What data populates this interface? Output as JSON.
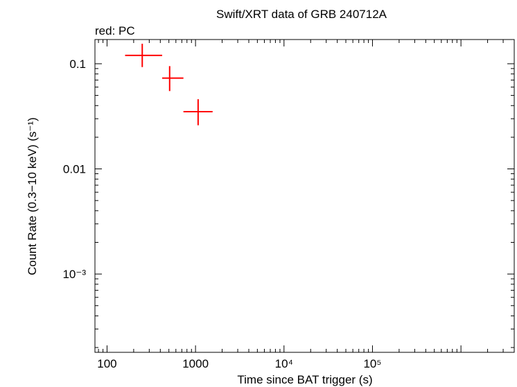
{
  "chart_data": {
    "type": "scatter",
    "title": "Swift/XRT data of GRB 240712A",
    "subtitle": "red: PC",
    "xlabel": "Time since BAT trigger (s)",
    "ylabel": "Count Rate (0.3−10 keV) (s⁻¹)",
    "xscale": "log",
    "yscale": "log",
    "xlim": [
      73,
      4000000
    ],
    "ylim": [
      0.00018,
      0.17
    ],
    "xticks": [
      {
        "value": 100,
        "label": "100"
      },
      {
        "value": 1000,
        "label": "1000"
      },
      {
        "value": 10000,
        "label": "10⁴"
      },
      {
        "value": 100000,
        "label": "10⁵"
      }
    ],
    "yticks": [
      {
        "value": 0.1,
        "label": "0.1"
      },
      {
        "value": 0.01,
        "label": "0.01"
      },
      {
        "value": 0.001,
        "label": "10⁻³"
      }
    ],
    "series": [
      {
        "name": "PC",
        "color": "#ff0000",
        "points": [
          {
            "x": 250,
            "xlo": 160,
            "xhi": 420,
            "y": 0.12,
            "ylo": 0.093,
            "yhi": 0.155
          },
          {
            "x": 510,
            "xlo": 420,
            "xhi": 730,
            "y": 0.073,
            "ylo": 0.055,
            "yhi": 0.095
          },
          {
            "x": 1070,
            "xlo": 730,
            "xhi": 1560,
            "y": 0.035,
            "ylo": 0.026,
            "yhi": 0.046
          }
        ]
      }
    ]
  }
}
